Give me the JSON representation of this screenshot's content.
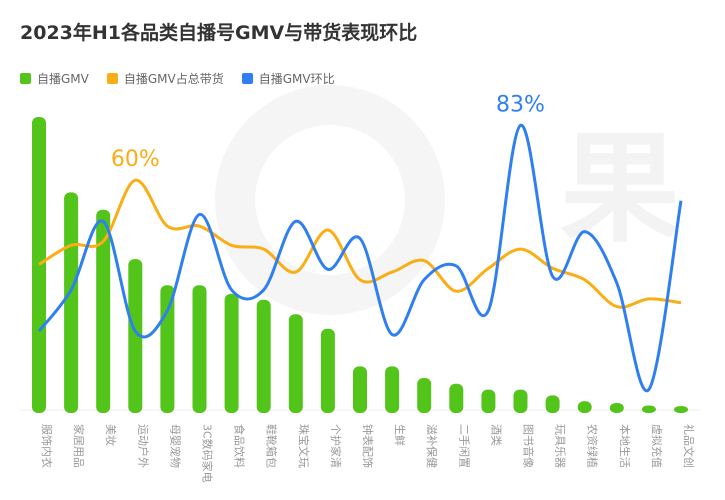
{
  "chart_data": {
    "type": "bar",
    "title": "2023年H1各品类自播号GMV与带货表现环比",
    "categories": [
      "服饰内衣",
      "家居用品",
      "美妆",
      "运动户外",
      "母婴宠物",
      "3C数码家电",
      "食品饮料",
      "鞋靴箱包",
      "珠宝文玩",
      "个护家清",
      "钟表配饰",
      "生鲜",
      "滋补保健",
      "二手闲置",
      "酒类",
      "图书音像",
      "玩具乐器",
      "农资绿植",
      "本地生活",
      "虚拟充值",
      "礼品文创"
    ],
    "series": [
      {
        "name": "自播GMV",
        "type": "bar",
        "color": "#52c41a",
        "values": [
          100,
          74,
          68,
          51,
          42,
          42,
          39,
          37,
          32,
          27,
          14,
          14,
          10,
          8,
          6,
          6,
          4,
          2,
          1.4,
          0.5,
          0.3
        ]
      },
      {
        "name": "自播GMV占总带货",
        "type": "line",
        "color": "#faad14",
        "unit": "%",
        "values": [
          38,
          43,
          44,
          60,
          48,
          48,
          43,
          42,
          36,
          47,
          34,
          36,
          39,
          31,
          37,
          42,
          37,
          34,
          27,
          29,
          28
        ]
      },
      {
        "name": "自播GMV环比",
        "type": "line",
        "color": "#2f7ff0",
        "unit": "%",
        "values": [
          23,
          35,
          55,
          23,
          29,
          57,
          35,
          35,
          55,
          41,
          50,
          22,
          38,
          42,
          29,
          83,
          39,
          52,
          37,
          6,
          61
        ]
      }
    ],
    "annotations": [
      {
        "series": "自播GMV占总带货",
        "category": "运动户外",
        "text": "60%"
      },
      {
        "series": "自播GMV环比",
        "category": "图书音像",
        "text": "83%"
      }
    ],
    "legend": "top-left",
    "grid": false
  }
}
